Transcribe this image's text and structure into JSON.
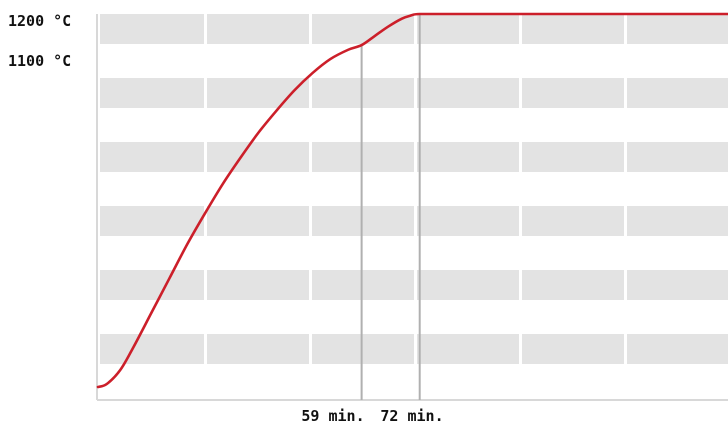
{
  "chart_data": {
    "type": "line",
    "title": "",
    "xlabel": "",
    "ylabel": "",
    "y_labels": [
      {
        "value": 1200,
        "text": "1200 °C"
      },
      {
        "value": 1100,
        "text": "1100 °C"
      }
    ],
    "x_markers": [
      {
        "value": 59,
        "label": "59 min.",
        "y": 1100
      },
      {
        "value": 72,
        "label": "72 min.",
        "y": 1200
      }
    ],
    "series": [
      {
        "x": [
          0,
          2,
          5,
          8,
          12,
          16,
          20,
          24,
          28,
          32,
          36,
          40,
          44,
          48,
          52,
          56,
          59,
          62,
          65,
          68,
          70,
          72,
          80,
          90,
          100,
          110,
          120,
          130,
          141
        ],
        "y": [
          0,
          10,
          55,
          130,
          240,
          350,
          460,
          560,
          655,
          740,
          820,
          890,
          955,
          1010,
          1055,
          1085,
          1100,
          1130,
          1160,
          1185,
          1195,
          1200,
          1200,
          1200,
          1200,
          1200,
          1200,
          1200,
          1200
        ]
      }
    ],
    "xlim": [
      0,
      141
    ],
    "ylim": [
      0,
      1200
    ],
    "grid": true,
    "colors": {
      "line": "#cc1f2a",
      "band": "#e3e3e3",
      "marker": "#b0b0b0",
      "axis": "#d8d8d8"
    }
  }
}
